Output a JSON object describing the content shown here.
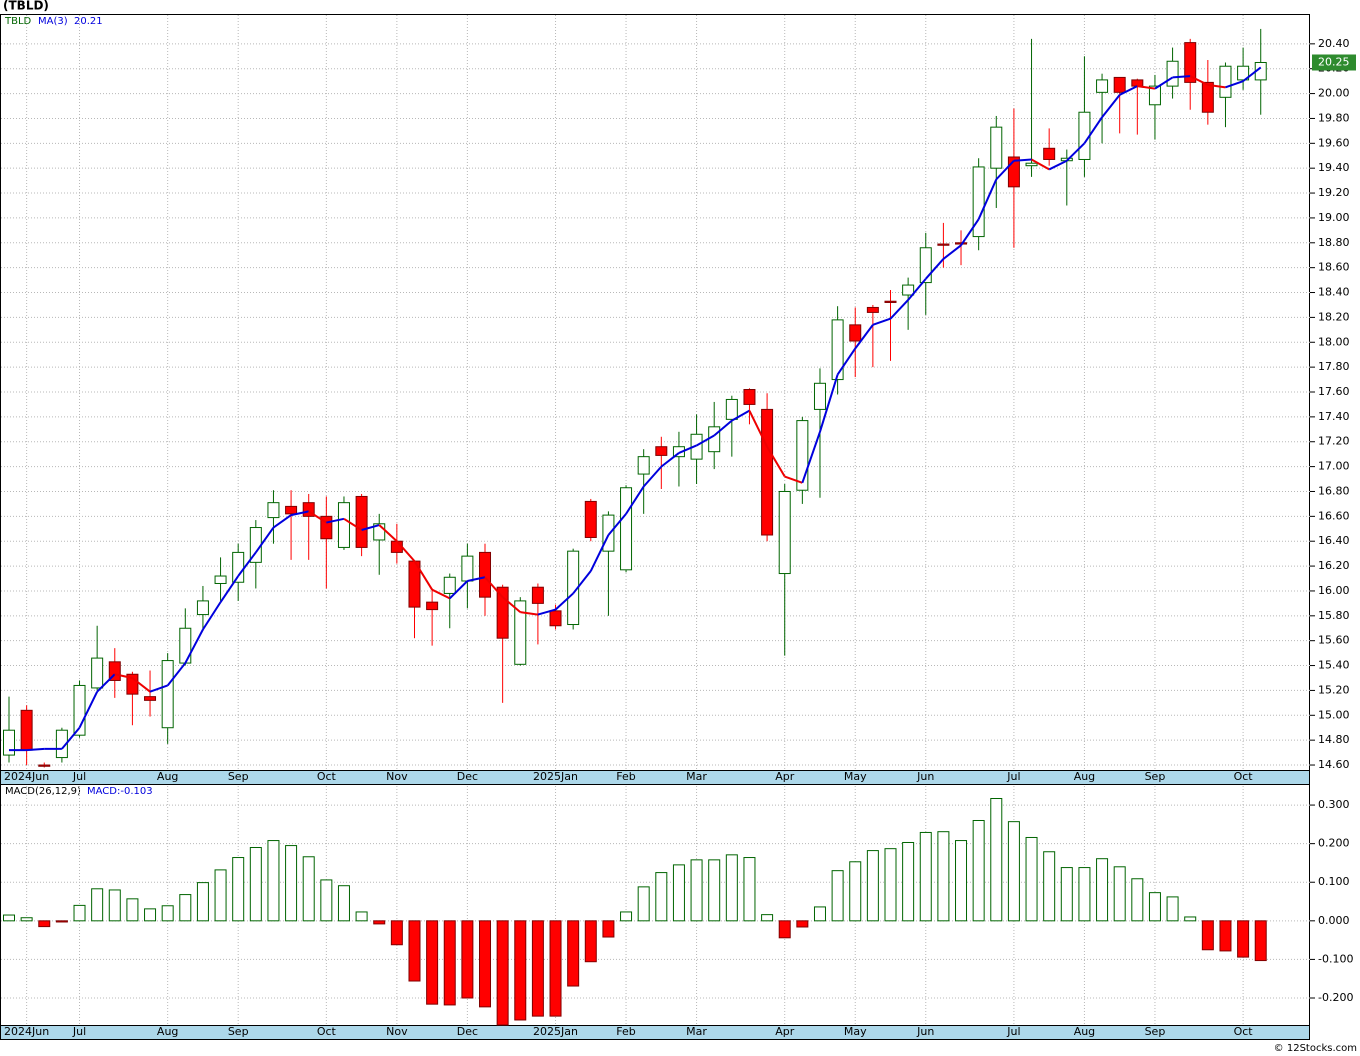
{
  "chart_data": [
    {
      "type": "candlestick",
      "title": "(TBLD)",
      "name": "TBLD",
      "categories": [
        null,
        "2024Jun",
        null,
        null,
        "Jul",
        null,
        null,
        null,
        null,
        "Aug",
        null,
        null,
        null,
        "Sep",
        null,
        null,
        null,
        null,
        "Oct",
        null,
        null,
        null,
        "Nov",
        null,
        null,
        null,
        "Dec",
        null,
        null,
        null,
        null,
        "2025Jan",
        null,
        null,
        null,
        "Feb",
        null,
        null,
        null,
        "Mar",
        null,
        null,
        null,
        null,
        "Apr",
        null,
        null,
        null,
        "May",
        null,
        null,
        null,
        "Jun",
        null,
        null,
        null,
        null,
        "Jul",
        null,
        null,
        null,
        "Aug",
        null,
        null,
        null,
        "Sep",
        null,
        null,
        null,
        null,
        "Oct",
        null
      ],
      "open": [
        14.68,
        15.04,
        14.6,
        14.66,
        14.84,
        15.22,
        15.43,
        15.33,
        15.15,
        14.9,
        15.42,
        15.81,
        16.06,
        16.07,
        16.23,
        16.59,
        16.68,
        16.71,
        16.6,
        16.35,
        16.76,
        16.41,
        16.4,
        16.24,
        15.91,
        15.98,
        16.08,
        16.31,
        16.03,
        15.41,
        16.03,
        15.84,
        15.73,
        16.72,
        16.32,
        16.17,
        16.94,
        17.16,
        17.08,
        17.06,
        17.12,
        17.38,
        17.62,
        17.46,
        16.14,
        16.81,
        17.46,
        17.7,
        18.14,
        18.28,
        18.33,
        18.38,
        18.48,
        18.79,
        18.8,
        18.85,
        19.4,
        19.49,
        19.42,
        19.56,
        19.46,
        19.47,
        20.01,
        20.13,
        20.11,
        19.91,
        20.06,
        20.41,
        20.09,
        19.97,
        20.11,
        20.11
      ],
      "high": [
        15.15,
        15.08,
        14.62,
        14.9,
        15.28,
        15.72,
        15.54,
        15.35,
        15.36,
        15.5,
        15.86,
        16.04,
        16.27,
        16.38,
        16.57,
        16.81,
        16.81,
        16.78,
        16.76,
        16.76,
        16.78,
        16.62,
        16.54,
        16.24,
        16.02,
        16.14,
        16.38,
        16.38,
        16.05,
        15.95,
        16.06,
        15.89,
        16.34,
        16.74,
        16.64,
        16.85,
        17.14,
        17.24,
        17.28,
        17.42,
        17.52,
        17.57,
        17.63,
        17.59,
        16.86,
        17.4,
        17.79,
        18.29,
        18.28,
        18.3,
        18.42,
        18.52,
        18.88,
        18.96,
        18.9,
        19.48,
        19.82,
        19.88,
        20.44,
        19.72,
        19.55,
        20.3,
        20.16,
        20.13,
        20.12,
        20.15,
        20.37,
        20.44,
        20.27,
        20.25,
        20.37,
        20.52
      ],
      "low": [
        14.62,
        14.6,
        14.58,
        14.62,
        14.82,
        15.2,
        15.14,
        14.92,
        14.99,
        14.77,
        15.4,
        15.68,
        15.92,
        15.92,
        16.02,
        16.38,
        16.25,
        16.25,
        16.02,
        16.33,
        16.28,
        16.13,
        16.22,
        15.62,
        15.56,
        15.7,
        15.86,
        15.8,
        15.1,
        15.4,
        15.57,
        15.69,
        15.69,
        16.4,
        15.8,
        16.15,
        16.62,
        16.82,
        16.84,
        16.86,
        16.98,
        17.08,
        17.34,
        16.4,
        15.48,
        16.7,
        16.75,
        17.58,
        17.72,
        17.8,
        17.85,
        18.1,
        18.22,
        18.6,
        18.62,
        18.74,
        19.08,
        18.76,
        19.33,
        19.42,
        19.1,
        19.33,
        19.6,
        19.68,
        19.67,
        19.63,
        19.96,
        19.87,
        19.75,
        19.73,
        20.03,
        19.83
      ],
      "close": [
        14.88,
        14.72,
        14.59,
        14.88,
        15.24,
        15.46,
        15.28,
        15.17,
        15.12,
        15.44,
        15.7,
        15.92,
        16.12,
        16.31,
        16.51,
        16.71,
        16.62,
        16.6,
        16.42,
        16.71,
        16.35,
        16.54,
        16.31,
        15.87,
        15.85,
        16.11,
        16.28,
        15.95,
        15.62,
        15.92,
        15.9,
        15.72,
        16.32,
        16.43,
        16.61,
        16.83,
        17.08,
        17.09,
        17.16,
        17.26,
        17.32,
        17.54,
        17.5,
        16.45,
        16.8,
        17.37,
        17.67,
        18.18,
        18.01,
        18.24,
        18.32,
        18.46,
        18.76,
        18.78,
        18.79,
        19.41,
        19.73,
        19.25,
        19.44,
        19.47,
        19.48,
        19.85,
        20.11,
        20.01,
        20.06,
        20.06,
        20.26,
        20.09,
        19.85,
        20.22,
        20.22,
        20.25
      ],
      "colors": {
        "up": "#006400",
        "down": "#ff0000",
        "last": "#2e8b2e"
      },
      "ma": {
        "name": "MA(3)",
        "label": "20.21",
        "colors": {
          "up": "#0000dd",
          "down": "#ee0000"
        },
        "values": [
          14.72,
          14.72,
          14.73,
          14.73,
          14.9,
          15.19,
          15.33,
          15.3,
          15.19,
          15.24,
          15.42,
          15.69,
          15.91,
          16.12,
          16.31,
          16.51,
          16.61,
          16.64,
          16.55,
          16.58,
          16.49,
          16.53,
          16.4,
          16.24,
          16.01,
          15.94,
          16.08,
          16.11,
          15.95,
          15.83,
          15.81,
          15.85,
          15.98,
          16.16,
          16.45,
          16.62,
          16.84,
          17.0,
          17.11,
          17.17,
          17.25,
          17.37,
          17.45,
          17.16,
          16.92,
          16.87,
          17.28,
          17.74,
          17.95,
          18.14,
          18.19,
          18.34,
          18.51,
          18.67,
          18.78,
          18.99,
          19.31,
          19.46,
          19.47,
          19.39,
          19.46,
          19.6,
          19.81,
          19.99,
          20.06,
          20.04,
          20.13,
          20.14,
          20.07,
          20.05,
          20.1,
          20.21
        ]
      },
      "ylim": [
        14.56,
        20.64
      ],
      "yticks": [
        {
          "value": 14.6,
          "label": "14.60"
        },
        {
          "value": 14.8,
          "label": "14.80"
        },
        {
          "value": 15.0,
          "label": "15.00"
        },
        {
          "value": 15.2,
          "label": "15.20"
        },
        {
          "value": 15.4,
          "label": "15.40"
        },
        {
          "value": 15.6,
          "label": "15.60"
        },
        {
          "value": 15.8,
          "label": "15.80"
        },
        {
          "value": 16.0,
          "label": "16.00"
        },
        {
          "value": 16.2,
          "label": "16.20"
        },
        {
          "value": 16.4,
          "label": "16.40"
        },
        {
          "value": 16.6,
          "label": "16.60"
        },
        {
          "value": 16.8,
          "label": "16.80"
        },
        {
          "value": 17.0,
          "label": "17.00"
        },
        {
          "value": 17.2,
          "label": "17.20"
        },
        {
          "value": 17.4,
          "label": "17.40"
        },
        {
          "value": 17.6,
          "label": "17.60"
        },
        {
          "value": 17.8,
          "label": "17.80"
        },
        {
          "value": 18.0,
          "label": "18.00"
        },
        {
          "value": 18.2,
          "label": "18.20"
        },
        {
          "value": 18.4,
          "label": "18.40"
        },
        {
          "value": 18.6,
          "label": "18.60"
        },
        {
          "value": 18.8,
          "label": "18.80"
        },
        {
          "value": 19.0,
          "label": "19.00"
        },
        {
          "value": 19.2,
          "label": "19.20"
        },
        {
          "value": 19.4,
          "label": "19.40"
        },
        {
          "value": 19.6,
          "label": "19.60"
        },
        {
          "value": 19.8,
          "label": "19.80"
        },
        {
          "value": 20.0,
          "label": "20.00"
        },
        {
          "value": 20.2,
          "label": "20.20"
        },
        {
          "value": 20.4,
          "label": "20.40"
        }
      ],
      "grid": true
    },
    {
      "type": "bar",
      "name": "MACD(26,12,9)",
      "label": "MACD:-0.103",
      "categories": [
        null,
        "2024Jun",
        null,
        null,
        "Jul",
        null,
        null,
        null,
        null,
        "Aug",
        null,
        null,
        null,
        "Sep",
        null,
        null,
        null,
        null,
        "Oct",
        null,
        null,
        null,
        "Nov",
        null,
        null,
        null,
        "Dec",
        null,
        null,
        null,
        null,
        "2025Jan",
        null,
        null,
        null,
        "Feb",
        null,
        null,
        null,
        "Mar",
        null,
        null,
        null,
        null,
        "Apr",
        null,
        null,
        null,
        "May",
        null,
        null,
        null,
        "Jun",
        null,
        null,
        null,
        null,
        "Jul",
        null,
        null,
        null,
        "Aug",
        null,
        null,
        null,
        "Sep",
        null,
        null,
        null,
        null,
        "Oct",
        null
      ],
      "values": [
        0.015,
        0.008,
        -0.015,
        -0.003,
        0.04,
        0.083,
        0.08,
        0.057,
        0.031,
        0.039,
        0.068,
        0.099,
        0.132,
        0.164,
        0.19,
        0.208,
        0.195,
        0.166,
        0.106,
        0.091,
        0.023,
        -0.008,
        -0.062,
        -0.156,
        -0.216,
        -0.218,
        -0.2,
        -0.223,
        -0.27,
        -0.257,
        -0.247,
        -0.247,
        -0.169,
        -0.106,
        -0.042,
        0.023,
        0.088,
        0.125,
        0.145,
        0.158,
        0.158,
        0.171,
        0.164,
        0.016,
        -0.044,
        -0.016,
        0.036,
        0.13,
        0.153,
        0.182,
        0.187,
        0.203,
        0.229,
        0.231,
        0.208,
        0.26,
        0.317,
        0.257,
        0.216,
        0.179,
        0.138,
        0.138,
        0.161,
        0.14,
        0.109,
        0.073,
        0.062,
        0.01,
        -0.075,
        -0.078,
        -0.094,
        -0.103
      ],
      "colors": {
        "up": "#006400",
        "down": "#ff0000"
      },
      "ylim": [
        -0.27,
        0.352
      ],
      "yticks": [
        {
          "value": 0.3,
          "label": "0.300"
        },
        {
          "value": 0.2,
          "label": "0.200"
        },
        {
          "value": 0.1,
          "label": "0.100"
        },
        {
          "value": 0,
          "label": "0.000"
        },
        {
          "value": -0.1,
          "label": "-0.100"
        },
        {
          "value": -0.2,
          "label": "-0.200"
        }
      ],
      "grid": true
    }
  ],
  "footer": "© 12Stocks.com"
}
